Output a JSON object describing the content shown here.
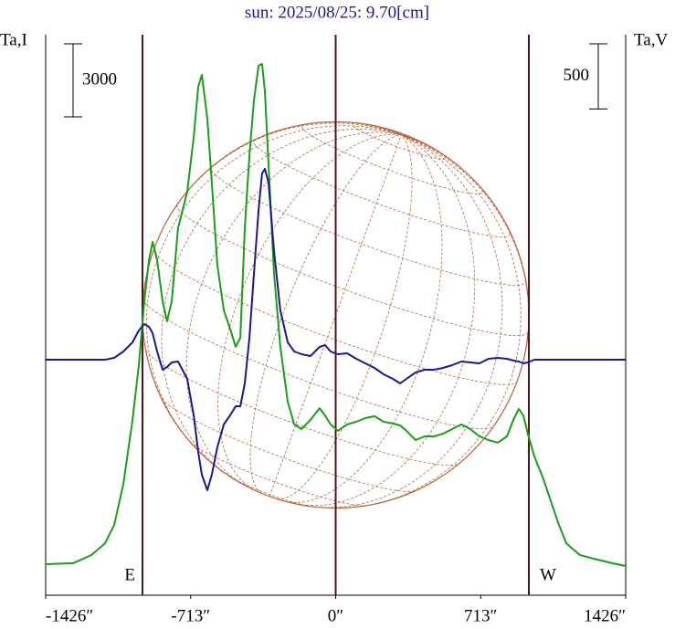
{
  "chart_data": {
    "type": "line",
    "title": "sun: 2025/08/25: 9.70[cm]",
    "ylabel": "Ta,I",
    "y2label": "Ta,V",
    "xlim": [
      -1426,
      1426
    ],
    "xticks": [
      {
        "value": -1426,
        "label": "-1426″"
      },
      {
        "value": -713,
        "label": "-713″"
      },
      {
        "value": 0,
        "label": "0″"
      },
      {
        "value": 713,
        "label": "713″"
      },
      {
        "value": 1426,
        "label": "1426″"
      }
    ],
    "ylim": [
      -1275,
      21750
    ],
    "y2lim": [
      -1806,
      2492
    ],
    "vlines": [
      -950,
      0,
      950
    ],
    "annotations": [
      "E",
      "W"
    ],
    "scale_bars": [
      {
        "value": 3000,
        "axis": "y"
      },
      {
        "value": 500,
        "axis": "y2"
      }
    ],
    "x": [
      -1426,
      -1291,
      -1201,
      -1134,
      -1089,
      -1044,
      -999,
      -968,
      -941,
      -918,
      -900,
      -878,
      -851,
      -829,
      -806,
      -775,
      -730,
      -698,
      -676,
      -658,
      -631,
      -609,
      -582,
      -550,
      -519,
      -492,
      -469,
      -447,
      -424,
      -402,
      -379,
      -362,
      -348,
      -330,
      -303,
      -272,
      -236,
      -204,
      -168,
      -124,
      -79,
      -52,
      -25,
      11,
      56,
      101,
      146,
      191,
      236,
      281,
      317,
      348,
      393,
      438,
      483,
      528,
      573,
      618,
      662,
      707,
      752,
      797,
      842,
      874,
      900,
      923,
      945,
      977,
      1022,
      1067,
      1098,
      1134,
      1201,
      1269,
      1359,
      1426
    ],
    "series": [
      {
        "name": "I",
        "color": "#1c9c1c",
        "values": [
          0,
          40,
          375,
          860,
          1610,
          3300,
          5930,
          8180,
          10800,
          12490,
          13240,
          12490,
          10800,
          9980,
          10800,
          13800,
          15300,
          17550,
          19610,
          20100,
          18300,
          15680,
          12300,
          10430,
          9680,
          8930,
          9300,
          13800,
          16800,
          19050,
          20480,
          20550,
          19430,
          16430,
          11930,
          8930,
          6680,
          5740,
          5550,
          5930,
          6410,
          6110,
          5740,
          5480,
          5740,
          5850,
          6000,
          6080,
          5850,
          5780,
          5700,
          5480,
          5100,
          5250,
          5250,
          5360,
          5550,
          5740,
          5550,
          5250,
          5100,
          4990,
          5250,
          5930,
          6380,
          6110,
          5360,
          4430,
          3490,
          2360,
          1610,
          860,
          375,
          225,
          40,
          -75
        ]
      },
      {
        "name": "V",
        "color": "#1a1a8c",
        "axis": "y2",
        "values": [
          0,
          0,
          0,
          0,
          14,
          63,
          133,
          224,
          273,
          252,
          203,
          63,
          -77,
          -56,
          -21,
          -14,
          -147,
          -427,
          -707,
          -882,
          -1001,
          -882,
          -672,
          -497,
          -427,
          -357,
          -357,
          -182,
          168,
          658,
          1148,
          1428,
          1463,
          1358,
          833,
          378,
          133,
          63,
          42,
          28,
          98,
          112,
          63,
          42,
          49,
          7,
          -28,
          -63,
          -112,
          -147,
          -182,
          -147,
          -98,
          -77,
          -77,
          -63,
          -42,
          -14,
          -21,
          -28,
          7,
          14,
          7,
          -7,
          -14,
          -28,
          -21,
          0,
          0,
          0,
          0,
          0,
          0,
          0,
          0,
          0
        ]
      }
    ]
  }
}
